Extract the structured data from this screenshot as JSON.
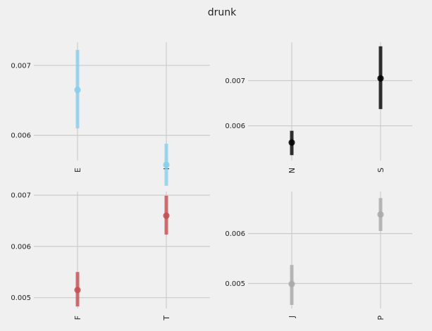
{
  "figure": {
    "title": "drunk",
    "background": "#f0f0f0"
  },
  "chart_data": [
    {
      "type": "pointrange",
      "categories": [
        "E",
        "I"
      ],
      "values": [
        0.00665,
        0.00558
      ],
      "err_low": [
        0.0061,
        0.00528
      ],
      "err_high": [
        0.00722,
        0.00588
      ],
      "yticks": [
        0.006,
        0.007
      ],
      "yticklabels": [
        "0.006",
        "0.007"
      ],
      "ylim": [
        0.00564,
        0.00733
      ],
      "color": "#87ceeb",
      "grid": true
    },
    {
      "type": "pointrange",
      "categories": [
        "N",
        "S"
      ],
      "values": [
        0.00563,
        0.00705
      ],
      "err_low": [
        0.00535,
        0.00637
      ],
      "err_high": [
        0.00589,
        0.00776
      ],
      "yticks": [
        0.006,
        0.007
      ],
      "yticklabels": [
        "0.006",
        "0.007"
      ],
      "ylim": [
        0.00523,
        0.00785
      ],
      "color": "#000000",
      "grid": true
    },
    {
      "type": "pointrange",
      "categories": [
        "F",
        "T"
      ],
      "values": [
        0.00515,
        0.0066
      ],
      "err_low": [
        0.00483,
        0.00623
      ],
      "err_high": [
        0.0055,
        0.00699
      ],
      "yticks": [
        0.005,
        0.006,
        0.007
      ],
      "yticklabels": [
        "0.005",
        "0.006",
        "0.007"
      ],
      "ylim": [
        0.00479,
        0.00707
      ],
      "color": "#c44e52",
      "grid": true
    },
    {
      "type": "pointrange",
      "categories": [
        "J",
        "P"
      ],
      "values": [
        0.00499,
        0.00638
      ],
      "err_low": [
        0.00457,
        0.00605
      ],
      "err_high": [
        0.00537,
        0.00671
      ],
      "yticks": [
        0.005,
        0.006
      ],
      "yticklabels": [
        "0.005",
        "0.006"
      ],
      "ylim": [
        0.0045,
        0.00684
      ],
      "color": "#a9a9a9",
      "grid": true
    }
  ]
}
